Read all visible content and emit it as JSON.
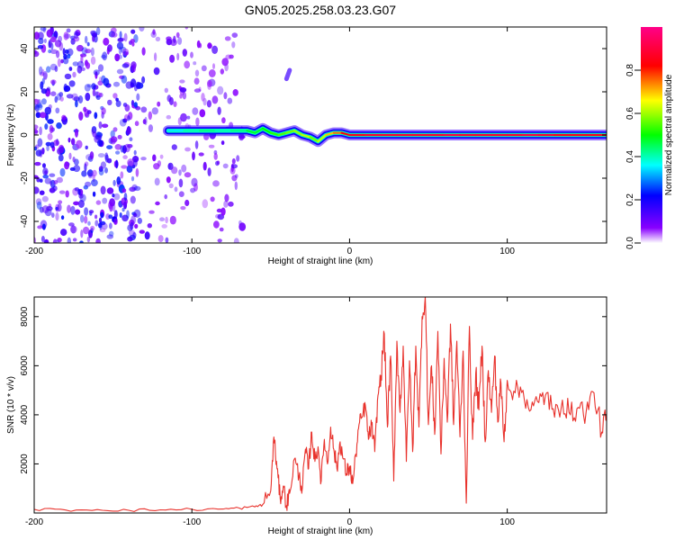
{
  "title": "GN05.2025.258.03.23.G07",
  "chart_data": [
    {
      "type": "heatmap",
      "xlabel": "Height of straight line (km)",
      "ylabel": "Frequency (Hz)",
      "xlim": [
        -200,
        163
      ],
      "ylim": [
        -50,
        50
      ],
      "xticks": [
        -200,
        -100,
        0,
        100
      ],
      "yticks": [
        -40,
        -20,
        0,
        20,
        40
      ],
      "colorbar": {
        "label": "Normalized spectral amplitude",
        "range": [
          0.0,
          1.0
        ],
        "ticks": [
          "0.0",
          "0.2",
          "0.4",
          "0.6",
          "0.8"
        ],
        "colormap": [
          "#ffffff",
          "#8800ff",
          "#0000ff",
          "#00ffff",
          "#00ff00",
          "#ffff00",
          "#ff0000",
          "#ff0088"
        ]
      },
      "noise_region": {
        "x_range": [
          -200,
          -68
        ],
        "y_range": [
          -50,
          50
        ],
        "amplitude": [
          0.05,
          0.25
        ]
      },
      "secondary_feature": {
        "x": [
          -40,
          -38
        ],
        "y": [
          26,
          30
        ],
        "amplitude": 0.15
      },
      "ridge": {
        "x": [
          -115,
          -105,
          -95,
          -85,
          -75,
          -65,
          -60,
          -55,
          -50,
          -45,
          -40,
          -35,
          -30,
          -25,
          -20,
          -15,
          -10,
          -5,
          0,
          10,
          20,
          30,
          40,
          50,
          60,
          70,
          80,
          90,
          100,
          110,
          120,
          130,
          140,
          150,
          163
        ],
        "frequency": [
          2,
          2,
          2,
          2,
          2,
          2,
          1,
          3,
          1,
          0,
          1,
          2,
          0,
          -1,
          -3,
          0,
          1,
          1,
          0,
          0,
          0,
          0,
          0,
          0,
          0,
          0,
          0,
          0,
          0,
          0,
          0,
          0,
          0,
          0,
          0
        ],
        "amplitude": [
          0.35,
          0.35,
          0.45,
          0.4,
          0.4,
          0.45,
          0.5,
          0.45,
          0.55,
          0.5,
          0.6,
          0.55,
          0.65,
          0.6,
          0.55,
          0.7,
          0.7,
          0.8,
          0.85,
          0.85,
          0.9,
          0.85,
          0.9,
          0.85,
          0.9,
          0.9,
          0.85,
          0.9,
          0.85,
          0.9,
          0.9,
          0.85,
          0.85,
          0.85,
          0.85
        ]
      }
    },
    {
      "type": "line",
      "xlabel": "Height of straight line (km)",
      "ylabel": "SNR (10 * v/v)",
      "xlim": [
        -200,
        163
      ],
      "ylim": [
        0,
        8800
      ],
      "xticks": [
        -200,
        -100,
        0,
        100
      ],
      "yticks": [
        2000,
        4000,
        6000,
        8000
      ],
      "series": [
        {
          "color": "#e8322c",
          "x": [
            -200,
            -180,
            -160,
            -140,
            -120,
            -100,
            -80,
            -70,
            -60,
            -55,
            -50,
            -48,
            -46,
            -44,
            -42,
            -40,
            -38,
            -35,
            -32,
            -30,
            -28,
            -26,
            -24,
            -22,
            -20,
            -18,
            -16,
            -14,
            -12,
            -10,
            -8,
            -6,
            -4,
            -2,
            0,
            2,
            4,
            6,
            8,
            10,
            12,
            14,
            16,
            18,
            20,
            22,
            24,
            26,
            28,
            30,
            32,
            34,
            36,
            38,
            40,
            42,
            44,
            46,
            48,
            50,
            52,
            54,
            56,
            58,
            60,
            62,
            64,
            66,
            68,
            70,
            72,
            74,
            76,
            78,
            80,
            82,
            84,
            86,
            88,
            90,
            92,
            94,
            96,
            98,
            100,
            105,
            110,
            115,
            120,
            125,
            130,
            135,
            140,
            145,
            150,
            155,
            160,
            163
          ],
          "y": [
            150,
            120,
            140,
            110,
            130,
            150,
            160,
            200,
            250,
            350,
            900,
            3100,
            1800,
            600,
            1100,
            300,
            800,
            2200,
            1500,
            1000,
            2600,
            1800,
            3300,
            2100,
            2700,
            1300,
            3000,
            2000,
            3500,
            2600,
            1800,
            2900,
            2200,
            1600,
            1900,
            1200,
            2400,
            3600,
            3900,
            4400,
            3000,
            3600,
            2500,
            4800,
            5600,
            7300,
            3500,
            6400,
            1300,
            7000,
            4100,
            6800,
            2100,
            6200,
            2500,
            6800,
            3500,
            8000,
            8800,
            3600,
            6000,
            3200,
            7400,
            2400,
            6300,
            3700,
            7700,
            3600,
            7000,
            3100,
            6600,
            400,
            7600,
            3000,
            5700,
            4200,
            6800,
            2900,
            5800,
            4100,
            6400,
            3700,
            5300,
            2900,
            5400,
            4900,
            5000,
            4200,
            4500,
            4900,
            3900,
            4600,
            4000,
            4300,
            4100,
            4900,
            3300,
            4000
          ]
        }
      ]
    }
  ]
}
